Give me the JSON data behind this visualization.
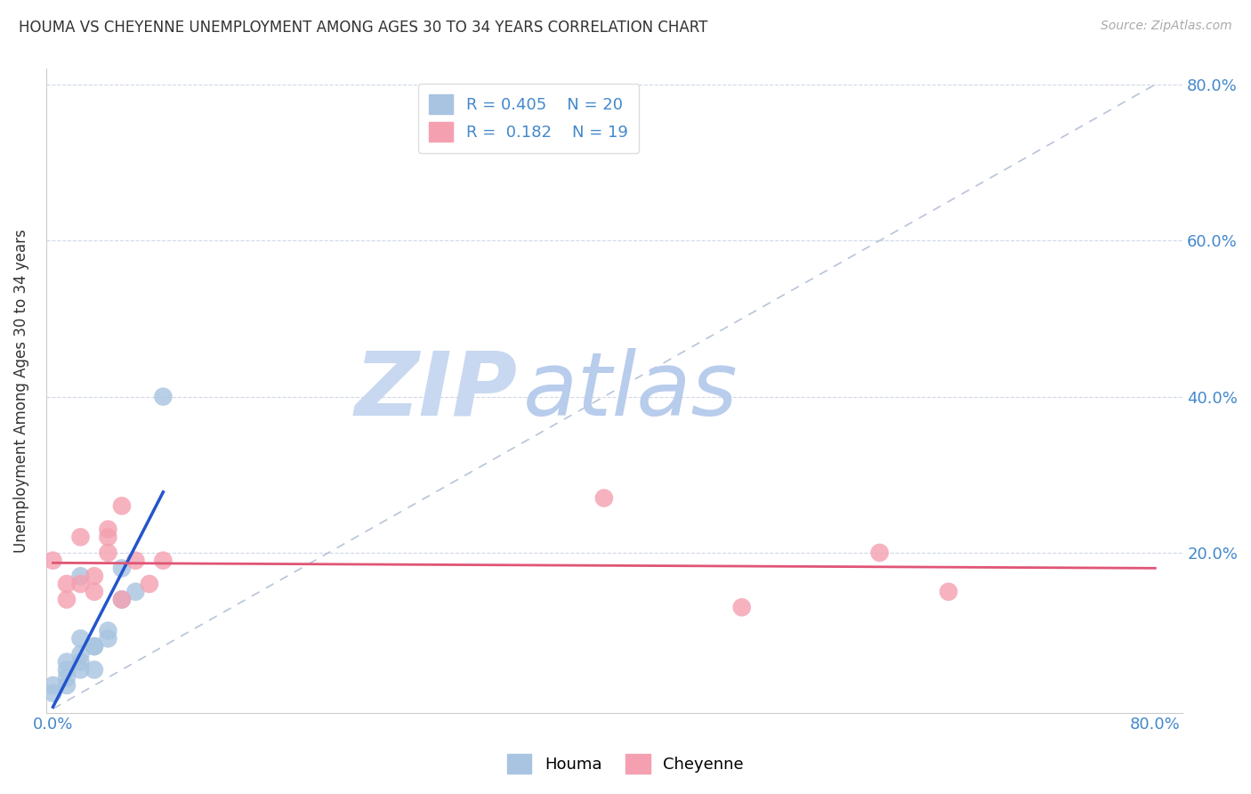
{
  "title": "HOUMA VS CHEYENNE UNEMPLOYMENT AMONG AGES 30 TO 34 YEARS CORRELATION CHART",
  "source": "Source: ZipAtlas.com",
  "ylabel_label": "Unemployment Among Ages 30 to 34 years",
  "legend_label1": "Houma",
  "legend_label2": "Cheyenne",
  "houma_R": 0.405,
  "houma_N": 20,
  "cheyenne_R": 0.182,
  "cheyenne_N": 19,
  "houma_color": "#a8c4e0",
  "cheyenne_color": "#f4a0b0",
  "houma_line_color": "#2255cc",
  "cheyenne_line_color": "#e05575",
  "diagonal_color": "#b8c4d8",
  "houma_scatter_x": [
    0.0,
    0.0,
    0.01,
    0.01,
    0.01,
    0.01,
    0.02,
    0.02,
    0.02,
    0.02,
    0.02,
    0.03,
    0.03,
    0.03,
    0.04,
    0.04,
    0.05,
    0.05,
    0.06,
    0.08
  ],
  "houma_scatter_y": [
    0.02,
    0.03,
    0.03,
    0.04,
    0.05,
    0.06,
    0.05,
    0.06,
    0.07,
    0.09,
    0.17,
    0.05,
    0.08,
    0.08,
    0.09,
    0.1,
    0.14,
    0.18,
    0.15,
    0.4
  ],
  "cheyenne_scatter_x": [
    0.0,
    0.01,
    0.01,
    0.02,
    0.02,
    0.03,
    0.03,
    0.04,
    0.04,
    0.04,
    0.05,
    0.05,
    0.06,
    0.07,
    0.08,
    0.4,
    0.5,
    0.6,
    0.65
  ],
  "cheyenne_scatter_y": [
    0.19,
    0.14,
    0.16,
    0.16,
    0.22,
    0.15,
    0.17,
    0.2,
    0.22,
    0.23,
    0.14,
    0.26,
    0.19,
    0.16,
    0.19,
    0.27,
    0.13,
    0.2,
    0.15
  ],
  "background_color": "#ffffff",
  "watermark_zip": "ZIP",
  "watermark_atlas": "atlas",
  "watermark_color_zip": "#d0dff0",
  "watermark_color_atlas": "#c8d8ec",
  "figsize": [
    14.06,
    8.92
  ],
  "dpi": 100
}
